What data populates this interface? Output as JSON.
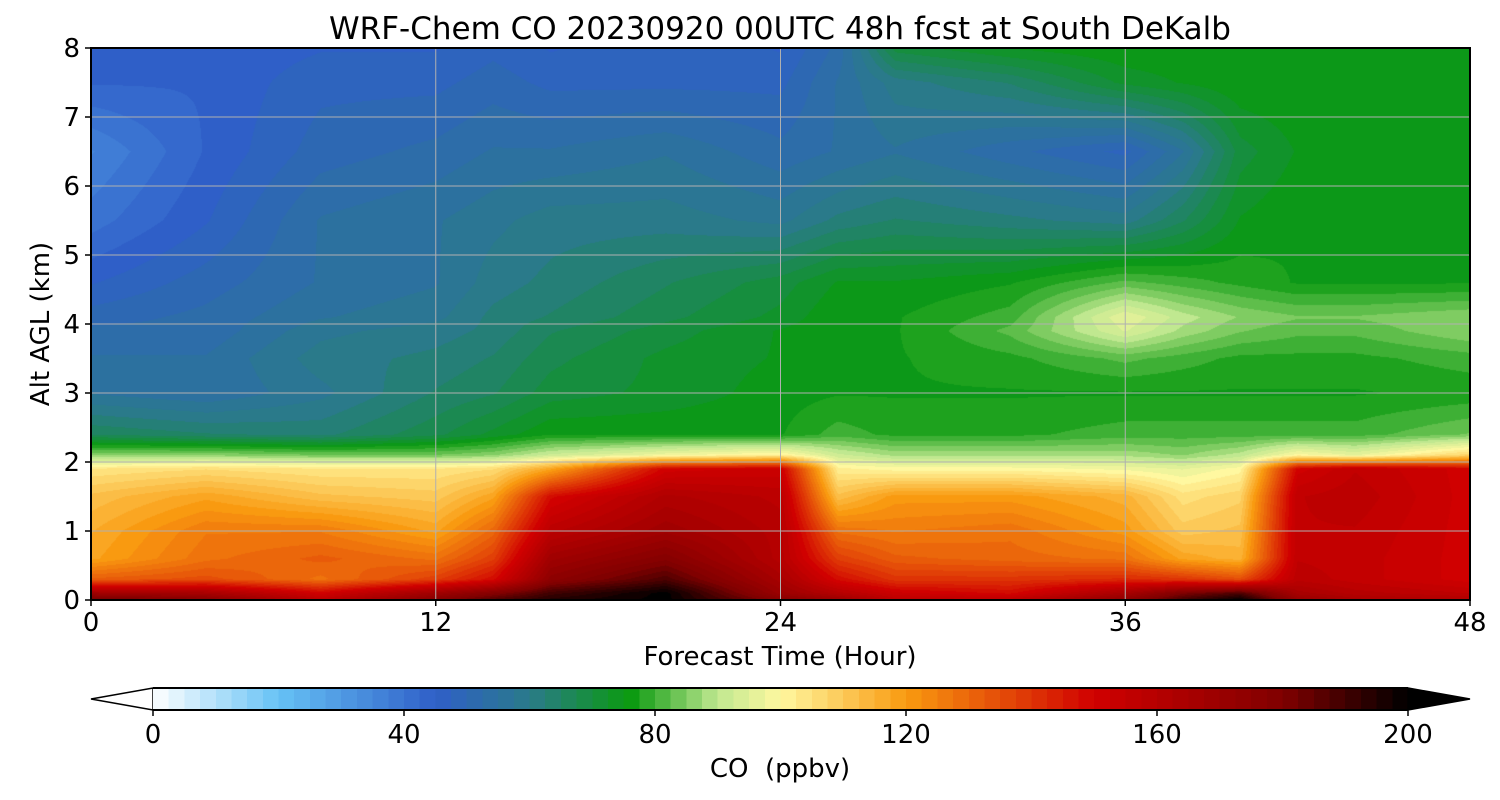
{
  "chart_data": {
    "type": "heatmap",
    "title": "WRF-Chem CO  20230920 00UTC 48h fcst at South DeKalb",
    "xlabel": "Forecast Time (Hour)",
    "ylabel": "Alt AGL (km)",
    "xlim": [
      0,
      48
    ],
    "ylim": [
      0,
      8
    ],
    "x_ticks": [
      0,
      12,
      24,
      36,
      48
    ],
    "y_ticks": [
      0,
      1,
      2,
      3,
      4,
      5,
      6,
      7,
      8
    ],
    "grid": true,
    "colorbar": {
      "label": "CO  (ppbv)",
      "range": [
        0,
        200
      ],
      "ticks": [
        0,
        40,
        80,
        120,
        160,
        200
      ],
      "extend": "both",
      "colors": [
        {
          "v": 0,
          "c": "#ffffff"
        },
        {
          "v": 20,
          "c": "#66c2f5"
        },
        {
          "v": 45,
          "c": "#2f5fc8"
        },
        {
          "v": 60,
          "c": "#2a7a8a"
        },
        {
          "v": 76,
          "c": "#0a9a10"
        },
        {
          "v": 90,
          "c": "#c0e890"
        },
        {
          "v": 100,
          "c": "#fff8a0"
        },
        {
          "v": 120,
          "c": "#f99a10"
        },
        {
          "v": 150,
          "c": "#d00000"
        },
        {
          "v": 180,
          "c": "#800000"
        },
        {
          "v": 200,
          "c": "#000000"
        }
      ]
    },
    "x": [
      0,
      4,
      8,
      12,
      14,
      16,
      20,
      24,
      26,
      28,
      32,
      36,
      38,
      40,
      42,
      44,
      48
    ],
    "y": [
      0,
      0.1,
      0.3,
      0.6,
      1.0,
      1.5,
      1.9,
      2.1,
      2.4,
      3.0,
      3.5,
      3.9,
      4.1,
      4.6,
      5.5,
      6.5,
      7.5,
      8.0
    ],
    "z": [
      [
        185,
        178,
        158,
        178,
        188,
        195,
        200,
        178,
        170,
        158,
        158,
        175,
        190,
        200,
        172,
        165,
        162
      ],
      [
        168,
        165,
        150,
        168,
        178,
        190,
        200,
        170,
        160,
        152,
        148,
        165,
        180,
        188,
        165,
        160,
        156
      ],
      [
        132,
        135,
        128,
        138,
        148,
        175,
        188,
        165,
        148,
        140,
        140,
        142,
        140,
        135,
        158,
        155,
        150
      ],
      [
        118,
        128,
        132,
        128,
        138,
        168,
        178,
        160,
        138,
        132,
        130,
        128,
        118,
        115,
        156,
        155,
        150
      ],
      [
        116,
        126,
        126,
        118,
        130,
        158,
        168,
        160,
        128,
        126,
        128,
        120,
        110,
        112,
        156,
        156,
        150
      ],
      [
        112,
        118,
        112,
        110,
        118,
        148,
        162,
        158,
        112,
        120,
        120,
        115,
        105,
        108,
        156,
        158,
        150
      ],
      [
        104,
        106,
        104,
        104,
        106,
        118,
        150,
        152,
        102,
        100,
        100,
        98,
        96,
        100,
        150,
        156,
        150
      ],
      [
        86,
        86,
        84,
        84,
        86,
        92,
        98,
        102,
        92,
        88,
        88,
        88,
        86,
        90,
        100,
        96,
        108
      ],
      [
        66,
        64,
        63,
        68,
        72,
        76,
        76,
        76,
        80,
        78,
        78,
        80,
        80,
        80,
        80,
        80,
        84
      ],
      [
        56,
        54,
        58,
        64,
        66,
        70,
        72,
        75,
        76,
        76,
        76,
        76,
        76,
        76,
        76,
        76,
        77
      ],
      [
        54,
        54,
        60,
        62,
        64,
        68,
        72,
        74,
        76,
        76,
        78,
        82,
        80,
        78,
        78,
        78,
        80
      ],
      [
        52,
        52,
        58,
        60,
        62,
        66,
        70,
        74,
        76,
        76,
        82,
        94,
        88,
        84,
        82,
        82,
        86
      ],
      [
        50,
        52,
        56,
        58,
        62,
        64,
        68,
        72,
        76,
        76,
        80,
        96,
        90,
        86,
        84,
        84,
        86
      ],
      [
        46,
        50,
        54,
        56,
        60,
        62,
        66,
        70,
        74,
        74,
        76,
        82,
        80,
        78,
        76,
        76,
        76
      ],
      [
        40,
        46,
        54,
        56,
        58,
        60,
        60,
        58,
        62,
        64,
        62,
        60,
        66,
        74,
        76,
        76,
        76
      ],
      [
        36,
        44,
        50,
        52,
        54,
        54,
        56,
        52,
        54,
        56,
        52,
        48,
        56,
        70,
        74,
        76,
        76
      ],
      [
        44,
        44,
        48,
        48,
        50,
        48,
        48,
        48,
        54,
        60,
        64,
        72,
        74,
        76,
        76,
        76,
        76
      ],
      [
        46,
        44,
        46,
        46,
        48,
        46,
        48,
        46,
        52,
        70,
        74,
        76,
        76,
        76,
        76,
        76,
        76
      ]
    ]
  }
}
